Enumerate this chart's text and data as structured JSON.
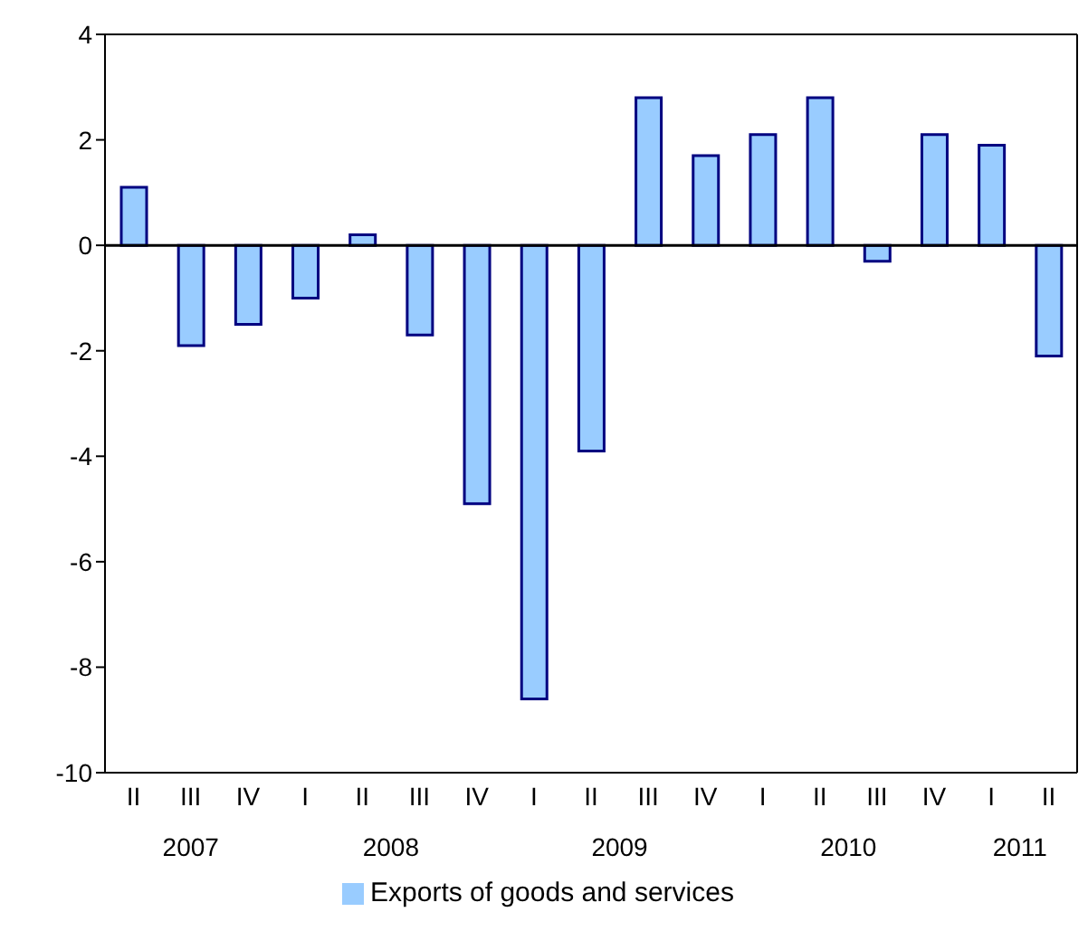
{
  "chart_data": {
    "type": "bar",
    "categories": [
      "II",
      "III",
      "IV",
      "I",
      "II",
      "III",
      "IV",
      "I",
      "II",
      "III",
      "IV",
      "I",
      "II",
      "III",
      "IV",
      "I",
      "II"
    ],
    "series": [
      {
        "name": "Exports of goods and services",
        "color": "#99ccff",
        "values": [
          1.1,
          -1.9,
          -1.5,
          -1.0,
          0.2,
          -1.7,
          -4.9,
          -8.6,
          -3.9,
          2.8,
          1.7,
          2.1,
          2.8,
          -0.3,
          2.1,
          1.9,
          -2.1
        ]
      }
    ],
    "ylim": [
      -10,
      4
    ],
    "yticks": [
      -10,
      -8,
      -6,
      -4,
      -2,
      0,
      2,
      4
    ],
    "grid": false,
    "legend": "bottom",
    "ref_lines": [
      {
        "axis": "y",
        "value": 0
      }
    ],
    "annotations": [
      "2007",
      "2008",
      "2009",
      "2010",
      "2011"
    ]
  }
}
